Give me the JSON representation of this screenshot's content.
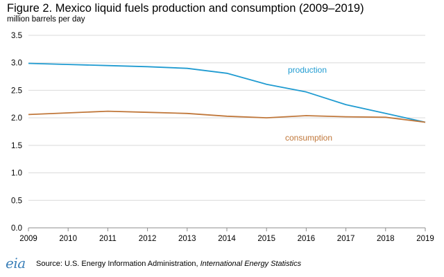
{
  "header": {
    "title": "Figure 2. Mexico liquid fuels production and consumption (2009–2019)",
    "subtitle": "million barrels per day"
  },
  "footer": {
    "logo_text": "eia",
    "source_prefix": "Source: U.S. Energy Information Administration, ",
    "source_italic": "International Energy Statistics"
  },
  "colors": {
    "production": "#1f9bd1",
    "consumption": "#c0773a",
    "grid": "#d9d9d9",
    "axis": "#8c8c8c"
  },
  "chart_data": {
    "type": "line",
    "title": "Figure 2. Mexico liquid fuels production and consumption (2009–2019)",
    "ylabel": "million barrels per day",
    "xlabel": "",
    "x": [
      2009,
      2010,
      2011,
      2012,
      2013,
      2014,
      2015,
      2016,
      2017,
      2018,
      2019
    ],
    "x_tick_labels": [
      "2009",
      "2010",
      "2011",
      "2012",
      "2013",
      "2014",
      "2015",
      "2016",
      "2017",
      "2018",
      "2019"
    ],
    "ylim": [
      0,
      3.5
    ],
    "y_ticks": [
      0,
      0.5,
      1.0,
      1.5,
      2.0,
      2.5,
      3.0,
      3.5
    ],
    "y_tick_labels": [
      "0.0",
      "0.5",
      "1.0",
      "1.5",
      "2.0",
      "2.5",
      "3.0",
      "3.5"
    ],
    "grid": true,
    "series": [
      {
        "name": "production",
        "label": "production",
        "values": [
          2.99,
          2.97,
          2.95,
          2.93,
          2.9,
          2.81,
          2.61,
          2.47,
          2.24,
          2.08,
          1.92
        ]
      },
      {
        "name": "consumption",
        "label": "consumption",
        "values": [
          2.06,
          2.09,
          2.12,
          2.1,
          2.08,
          2.03,
          2.0,
          2.04,
          2.02,
          2.01,
          1.92
        ]
      }
    ]
  }
}
